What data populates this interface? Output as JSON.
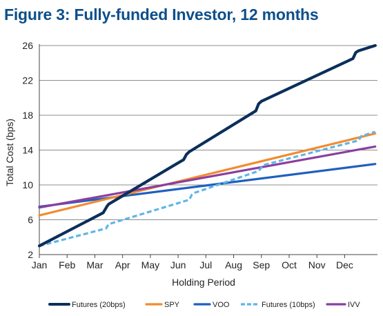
{
  "chart_data": {
    "type": "line",
    "title": "Figure 3: Fully-funded Investor, 12 months",
    "xlabel": "Holding Period",
    "ylabel": "Total Cost (bps)",
    "ylim": [
      2,
      26
    ],
    "yticks": [
      "2",
      "6",
      "10",
      "14",
      "18",
      "22",
      "26"
    ],
    "xlim": [
      0,
      12
    ],
    "categories": [
      "Jan",
      "Feb",
      "Mar",
      "Apr",
      "May",
      "Jun",
      "Jul",
      "Aug",
      "Sep",
      "Oct",
      "Nov",
      "Dec"
    ],
    "grid": "horizontal",
    "legend_position": "bottom",
    "series": [
      {
        "name": "Futures (20bps)",
        "color": "#0b2f5a",
        "dash": "solid",
        "points": [
          [
            0,
            3.0
          ],
          [
            2.3,
            6.8
          ],
          [
            2.45,
            7.6
          ],
          [
            2.5,
            7.8
          ],
          [
            5.2,
            12.9
          ],
          [
            5.3,
            13.5
          ],
          [
            5.4,
            13.8
          ],
          [
            7.8,
            18.5
          ],
          [
            7.9,
            19.3
          ],
          [
            8.0,
            19.6
          ],
          [
            11.3,
            24.5
          ],
          [
            11.4,
            25.2
          ],
          [
            11.5,
            25.4
          ],
          [
            12.1,
            26.0
          ]
        ]
      },
      {
        "name": "SPY",
        "color": "#f28b30",
        "dash": "solid",
        "points": [
          [
            0,
            6.5
          ],
          [
            12.1,
            15.9
          ]
        ]
      },
      {
        "name": "VOO",
        "color": "#1f5fbf",
        "dash": "solid",
        "points": [
          [
            0,
            7.5
          ],
          [
            12.1,
            12.4
          ]
        ]
      },
      {
        "name": "Futures (10bps)",
        "color": "#5fb5e8",
        "dash": "dashed",
        "points": [
          [
            0,
            3.0
          ],
          [
            2.4,
            5.0
          ],
          [
            2.5,
            5.5
          ],
          [
            2.6,
            5.6
          ],
          [
            5.4,
            8.3
          ],
          [
            5.5,
            8.9
          ],
          [
            5.6,
            9.1
          ],
          [
            7.9,
            11.6
          ],
          [
            8.0,
            12.0
          ],
          [
            8.1,
            12.3
          ],
          [
            11.5,
            15.1
          ],
          [
            11.6,
            15.6
          ],
          [
            11.7,
            15.7
          ],
          [
            12.1,
            16.1
          ]
        ]
      },
      {
        "name": "IVV",
        "color": "#8a3fa0",
        "dash": "solid",
        "points": [
          [
            0,
            7.4
          ],
          [
            12.1,
            14.4
          ]
        ]
      }
    ]
  }
}
